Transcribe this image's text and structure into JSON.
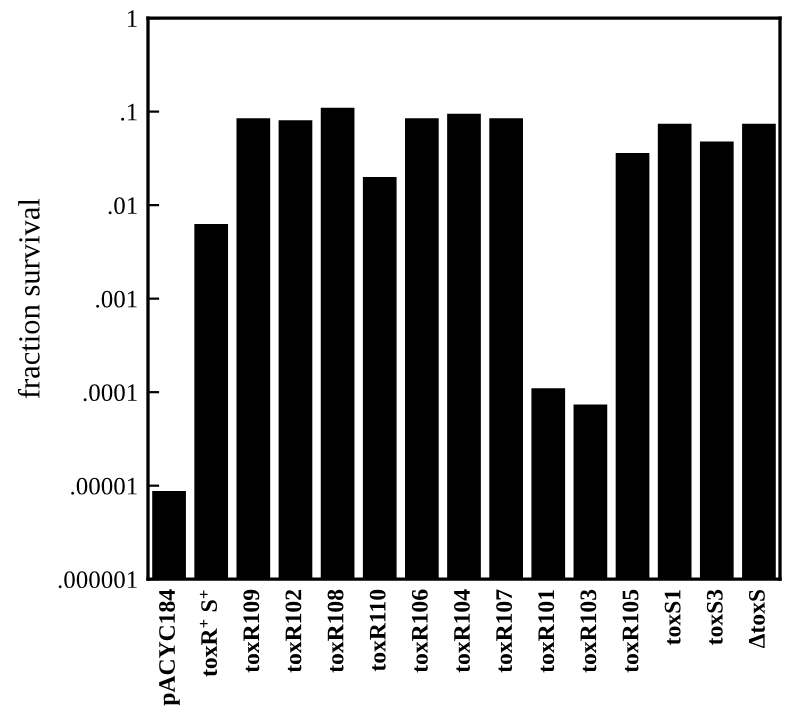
{
  "chart_data": {
    "type": "bar",
    "ylabel": "fraction survival",
    "categories": [
      "pACYC184",
      "toxR$^{+}$ S$^{+}$",
      "toxR109",
      "toxR102",
      "toxR108",
      "toxR110",
      "toxR106",
      "toxR104",
      "toxR107",
      "toxR101",
      "toxR103",
      "toxR105",
      "toxS1",
      "toxS3",
      "ΔtoxS"
    ],
    "values": [
      8.8e-06,
      0.0063,
      0.085,
      0.081,
      0.11,
      0.02,
      0.085,
      0.095,
      0.085,
      0.00011,
      7.4e-05,
      0.036,
      0.074,
      0.048,
      0.074
    ],
    "color": "#000000",
    "log": true,
    "ylim": [
      1e-06,
      1
    ],
    "yticks": [
      {
        "value": 1e-06,
        "label": ".000001"
      },
      {
        "value": 1e-05,
        "label": ".00001"
      },
      {
        "value": 0.0001,
        "label": ".0001"
      },
      {
        "value": 0.001,
        "label": ".001"
      },
      {
        "value": 0.01,
        "label": ".01"
      },
      {
        "value": 0.1,
        "label": ".1"
      },
      1
    ],
    "grid": false
  }
}
